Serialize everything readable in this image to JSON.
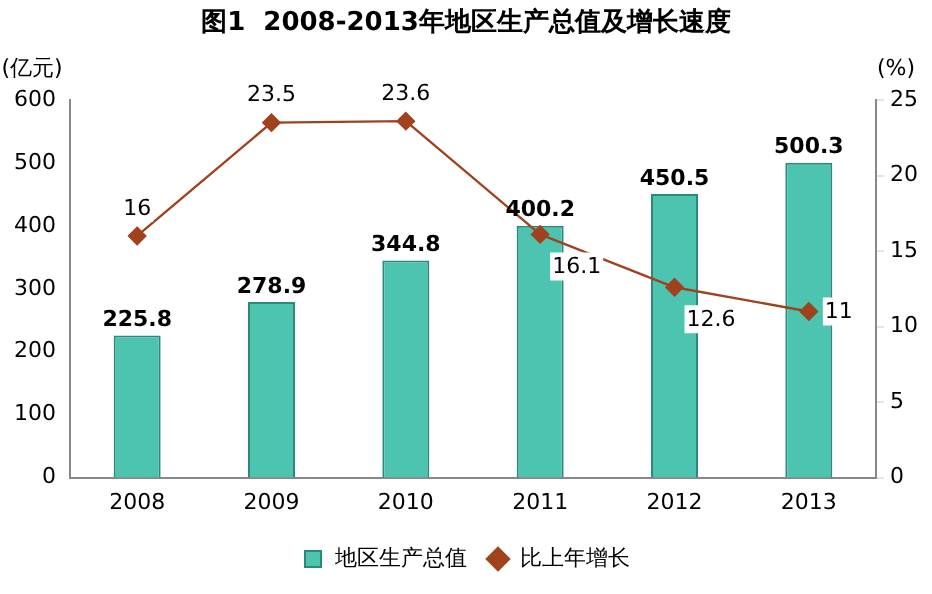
{
  "chart_data": {
    "type": "bar",
    "title": "图1  2008-2013年地区生产总值及增长速度",
    "ylabel": "(亿元)",
    "y2label": "(%)",
    "categories": [
      "2008",
      "2009",
      "2010",
      "2011",
      "2012",
      "2013"
    ],
    "series": [
      {
        "name": "地区生产总值",
        "color": "#4cc4b0",
        "values": [
          225.8,
          278.9,
          344.8,
          400.2,
          450.5,
          500.3
        ]
      },
      {
        "name": "比上年增长",
        "type": "line",
        "axis": "y2",
        "color": "#a0421e",
        "values": [
          16,
          23.5,
          23.6,
          16.1,
          12.6,
          11
        ],
        "marker": "diamond"
      }
    ],
    "ylim": [
      0,
      600
    ],
    "yticks": [
      0,
      100,
      200,
      300,
      400,
      500,
      600
    ],
    "y2lim": [
      0,
      25
    ],
    "y2ticks": [
      0,
      5,
      10,
      15,
      20,
      25
    ],
    "grid": false,
    "legend": "bottom",
    "data_labels": true
  }
}
